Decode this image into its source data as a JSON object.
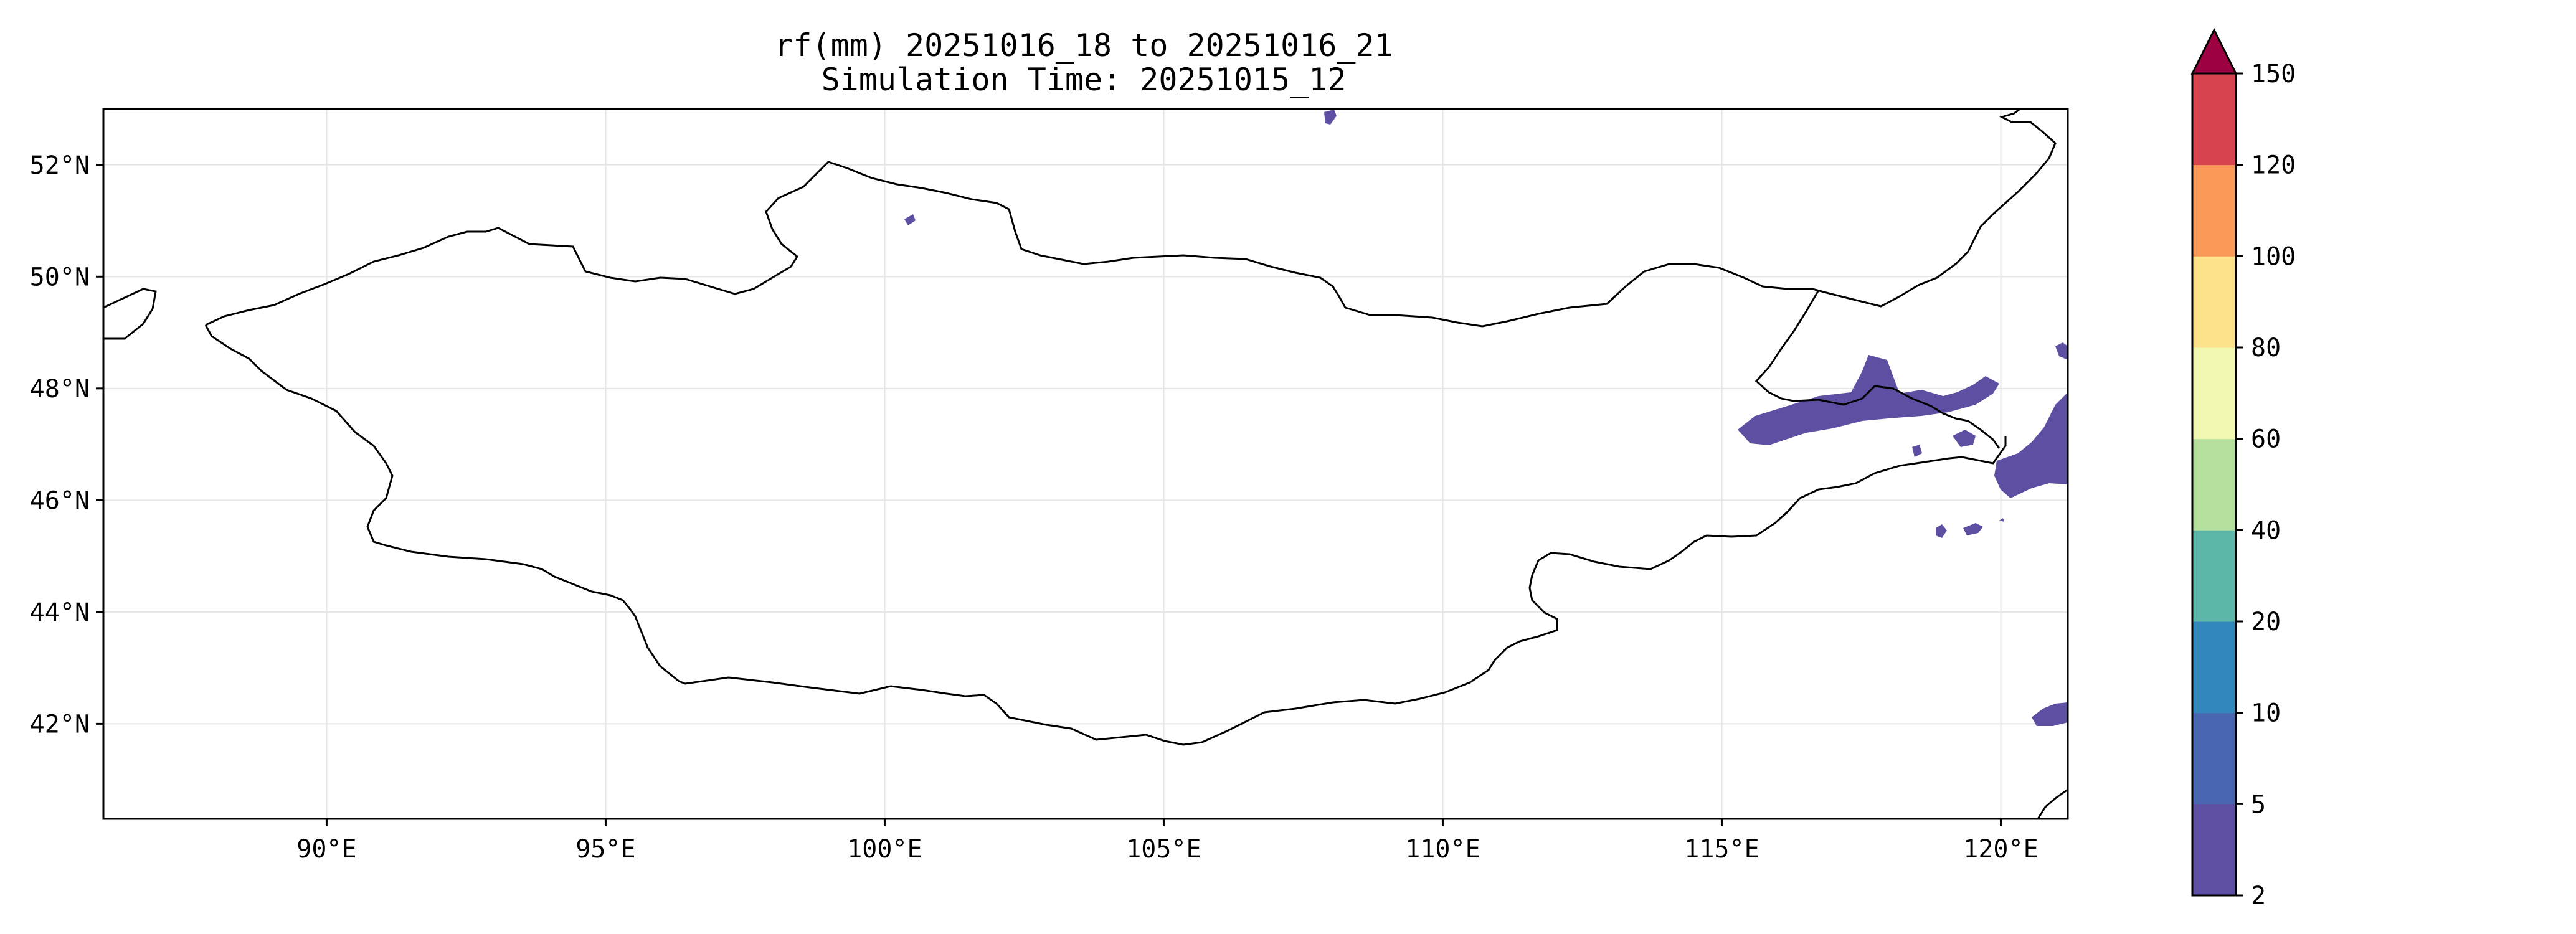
{
  "figure": {
    "title_line1": "rf(mm) 20251016_18 to 20251016_21",
    "title_line2": "Simulation Time: 20251015_12"
  },
  "map": {
    "lon_range": [
      86,
      121.2
    ],
    "lat_range": [
      40.3,
      53
    ],
    "x_ticks": [
      {
        "value": 90,
        "label": "90°E"
      },
      {
        "value": 95,
        "label": "95°E"
      },
      {
        "value": 100,
        "label": "100°E"
      },
      {
        "value": 105,
        "label": "105°E"
      },
      {
        "value": 110,
        "label": "110°E"
      },
      {
        "value": 115,
        "label": "115°E"
      },
      {
        "value": 120,
        "label": "120°E"
      }
    ],
    "y_ticks": [
      {
        "value": 52,
        "label": "52°N"
      },
      {
        "value": 50,
        "label": "50°N"
      },
      {
        "value": 48,
        "label": "48°N"
      },
      {
        "value": 46,
        "label": "46°N"
      },
      {
        "value": 44,
        "label": "44°N"
      },
      {
        "value": 42,
        "label": "42°N"
      }
    ],
    "gridlines": true,
    "rain_color": "#5e4fa2"
  },
  "colorbar": {
    "extend": "max",
    "levels": [
      {
        "label": "2",
        "value": 2,
        "color": "#5e4fa2"
      },
      {
        "label": "5",
        "value": 5,
        "color": "#4a66b0"
      },
      {
        "label": "10",
        "value": 10,
        "color": "#3288bd"
      },
      {
        "label": "20",
        "value": 20,
        "color": "#5db7a9"
      },
      {
        "label": "40",
        "value": 40,
        "color": "#b5df9c"
      },
      {
        "label": "60",
        "value": 60,
        "color": "#f2f8b0"
      },
      {
        "label": "80",
        "value": 80,
        "color": "#fde18b"
      },
      {
        "label": "100",
        "value": 100,
        "color": "#fb9a58"
      },
      {
        "label": "120",
        "value": 120,
        "color": "#d7434f"
      },
      {
        "label": "150",
        "value": 150,
        "color": "#9e0142"
      }
    ]
  }
}
